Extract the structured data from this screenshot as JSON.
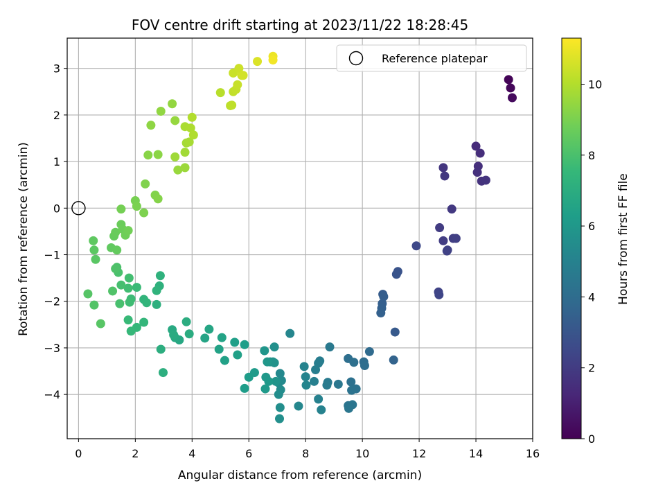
{
  "chart_data": {
    "type": "scatter",
    "title": "FOV centre drift starting at 2023/11/22 18:28:45",
    "xlabel": "Angular distance from reference (arcmin)",
    "ylabel": "Rotation from reference (arcmin)",
    "xlim": [
      -0.4,
      16.0
    ],
    "ylim": [
      -4.95,
      3.65
    ],
    "xticks": [
      0,
      2,
      4,
      6,
      8,
      10,
      12,
      14,
      16
    ],
    "yticks": [
      -4,
      -3,
      -2,
      -1,
      0,
      1,
      2,
      3
    ],
    "grid": true,
    "legend": {
      "position": "top-right",
      "entries": [
        {
          "label": "Reference platepar",
          "marker": "open-circle"
        }
      ]
    },
    "reference_point": {
      "x": 0,
      "y": 0
    },
    "colorbar": {
      "label": "Hours from first FF file",
      "range": [
        0,
        11.3
      ],
      "ticks": [
        0,
        2,
        4,
        6,
        8,
        10
      ],
      "colormap": "viridis"
    },
    "points": [
      {
        "x": 15.15,
        "y": 2.76,
        "c": 0.1
      },
      {
        "x": 15.22,
        "y": 2.58,
        "c": 0.2
      },
      {
        "x": 15.28,
        "y": 2.37,
        "c": 0.3
      },
      {
        "x": 14.0,
        "y": 1.33,
        "c": 1.4
      },
      {
        "x": 14.15,
        "y": 1.18,
        "c": 1.5
      },
      {
        "x": 14.08,
        "y": 0.9,
        "c": 1.55
      },
      {
        "x": 14.05,
        "y": 0.77,
        "c": 1.6
      },
      {
        "x": 14.2,
        "y": 0.58,
        "c": 1.65
      },
      {
        "x": 14.35,
        "y": 0.6,
        "c": 1.7
      },
      {
        "x": 12.85,
        "y": 0.87,
        "c": 1.8
      },
      {
        "x": 12.9,
        "y": 0.69,
        "c": 1.85
      },
      {
        "x": 13.15,
        "y": -0.02,
        "c": 1.9
      },
      {
        "x": 12.72,
        "y": -0.42,
        "c": 2.0
      },
      {
        "x": 12.85,
        "y": -0.7,
        "c": 2.05
      },
      {
        "x": 13.2,
        "y": -0.65,
        "c": 2.1
      },
      {
        "x": 13.3,
        "y": -0.65,
        "c": 2.15
      },
      {
        "x": 13.0,
        "y": -0.9,
        "c": 2.2
      },
      {
        "x": 12.98,
        "y": -0.92,
        "c": 2.25
      },
      {
        "x": 11.9,
        "y": -0.81,
        "c": 2.5
      },
      {
        "x": 12.68,
        "y": -1.8,
        "c": 2.3
      },
      {
        "x": 12.7,
        "y": -1.86,
        "c": 2.35
      },
      {
        "x": 11.25,
        "y": -1.36,
        "c": 2.9
      },
      {
        "x": 11.2,
        "y": -1.42,
        "c": 2.95
      },
      {
        "x": 10.72,
        "y": -1.85,
        "c": 3.3
      },
      {
        "x": 10.75,
        "y": -1.9,
        "c": 3.35
      },
      {
        "x": 10.7,
        "y": -2.05,
        "c": 3.4
      },
      {
        "x": 10.68,
        "y": -2.15,
        "c": 3.45
      },
      {
        "x": 10.65,
        "y": -2.25,
        "c": 3.5
      },
      {
        "x": 11.15,
        "y": -2.66,
        "c": 3.2
      },
      {
        "x": 11.1,
        "y": -3.26,
        "c": 3.6
      },
      {
        "x": 10.25,
        "y": -3.08,
        "c": 3.9
      },
      {
        "x": 10.05,
        "y": -3.3,
        "c": 4.0
      },
      {
        "x": 10.08,
        "y": -3.38,
        "c": 4.05
      },
      {
        "x": 9.5,
        "y": -3.23,
        "c": 4.1
      },
      {
        "x": 9.7,
        "y": -3.31,
        "c": 4.15
      },
      {
        "x": 9.6,
        "y": -3.73,
        "c": 4.2
      },
      {
        "x": 9.78,
        "y": -3.88,
        "c": 4.25
      },
      {
        "x": 9.62,
        "y": -3.91,
        "c": 4.3
      },
      {
        "x": 9.5,
        "y": -4.24,
        "c": 4.35
      },
      {
        "x": 9.65,
        "y": -4.22,
        "c": 4.4
      },
      {
        "x": 9.52,
        "y": -4.3,
        "c": 4.45
      },
      {
        "x": 9.15,
        "y": -3.78,
        "c": 4.5
      },
      {
        "x": 8.85,
        "y": -2.98,
        "c": 4.6
      },
      {
        "x": 8.78,
        "y": -3.74,
        "c": 4.65
      },
      {
        "x": 8.75,
        "y": -3.8,
        "c": 4.7
      },
      {
        "x": 8.5,
        "y": -3.28,
        "c": 4.75
      },
      {
        "x": 8.45,
        "y": -3.33,
        "c": 4.8
      },
      {
        "x": 8.35,
        "y": -3.47,
        "c": 4.85
      },
      {
        "x": 8.3,
        "y": -3.72,
        "c": 4.9
      },
      {
        "x": 8.45,
        "y": -4.1,
        "c": 4.95
      },
      {
        "x": 8.55,
        "y": -4.33,
        "c": 5.0
      },
      {
        "x": 7.95,
        "y": -3.4,
        "c": 5.05
      },
      {
        "x": 8.0,
        "y": -3.62,
        "c": 5.1
      },
      {
        "x": 8.02,
        "y": -3.8,
        "c": 5.15
      },
      {
        "x": 7.45,
        "y": -2.69,
        "c": 5.2
      },
      {
        "x": 7.75,
        "y": -4.25,
        "c": 5.25
      },
      {
        "x": 7.1,
        "y": -3.55,
        "c": 5.3
      },
      {
        "x": 7.15,
        "y": -3.7,
        "c": 5.35
      },
      {
        "x": 7.05,
        "y": -3.75,
        "c": 5.4
      },
      {
        "x": 7.12,
        "y": -3.9,
        "c": 5.45
      },
      {
        "x": 7.05,
        "y": -4.0,
        "c": 5.5
      },
      {
        "x": 7.1,
        "y": -4.28,
        "c": 5.55
      },
      {
        "x": 7.08,
        "y": -4.52,
        "c": 5.6
      },
      {
        "x": 6.9,
        "y": -2.98,
        "c": 5.65
      },
      {
        "x": 6.9,
        "y": -3.32,
        "c": 5.7
      },
      {
        "x": 6.75,
        "y": -3.3,
        "c": 5.75
      },
      {
        "x": 6.85,
        "y": -3.3,
        "c": 5.8
      },
      {
        "x": 6.95,
        "y": -3.72,
        "c": 5.85
      },
      {
        "x": 6.55,
        "y": -3.06,
        "c": 5.9
      },
      {
        "x": 6.65,
        "y": -3.3,
        "c": 5.95
      },
      {
        "x": 6.6,
        "y": -3.63,
        "c": 6.0
      },
      {
        "x": 6.7,
        "y": -3.72,
        "c": 6.05
      },
      {
        "x": 6.58,
        "y": -3.88,
        "c": 6.1
      },
      {
        "x": 6.2,
        "y": -3.53,
        "c": 6.15
      },
      {
        "x": 6.0,
        "y": -3.63,
        "c": 6.2
      },
      {
        "x": 5.85,
        "y": -3.87,
        "c": 6.25
      },
      {
        "x": 5.85,
        "y": -2.93,
        "c": 6.3
      },
      {
        "x": 5.5,
        "y": -2.88,
        "c": 6.35
      },
      {
        "x": 5.6,
        "y": -3.15,
        "c": 6.4
      },
      {
        "x": 5.15,
        "y": -3.27,
        "c": 6.45
      },
      {
        "x": 4.95,
        "y": -3.03,
        "c": 6.5
      },
      {
        "x": 5.05,
        "y": -2.78,
        "c": 6.55
      },
      {
        "x": 4.45,
        "y": -2.79,
        "c": 6.6
      },
      {
        "x": 4.6,
        "y": -2.6,
        "c": 6.65
      },
      {
        "x": 3.55,
        "y": -2.83,
        "c": 6.75
      },
      {
        "x": 3.4,
        "y": -2.78,
        "c": 6.8
      },
      {
        "x": 3.3,
        "y": -2.61,
        "c": 6.85
      },
      {
        "x": 3.35,
        "y": -2.72,
        "c": 6.9
      },
      {
        "x": 3.9,
        "y": -2.7,
        "c": 6.95
      },
      {
        "x": 3.8,
        "y": -2.44,
        "c": 7.0
      },
      {
        "x": 2.9,
        "y": -3.03,
        "c": 7.05
      },
      {
        "x": 2.98,
        "y": -3.53,
        "c": 7.1
      },
      {
        "x": 2.75,
        "y": -2.07,
        "c": 7.15
      },
      {
        "x": 2.85,
        "y": -1.67,
        "c": 7.2
      },
      {
        "x": 2.88,
        "y": -1.45,
        "c": 7.25
      },
      {
        "x": 2.75,
        "y": -1.77,
        "c": 7.3
      },
      {
        "x": 2.3,
        "y": -1.96,
        "c": 7.35
      },
      {
        "x": 2.4,
        "y": -2.03,
        "c": 7.4
      },
      {
        "x": 2.3,
        "y": -2.45,
        "c": 7.45
      },
      {
        "x": 2.05,
        "y": -2.56,
        "c": 7.5
      },
      {
        "x": 1.85,
        "y": -2.64,
        "c": 7.55
      },
      {
        "x": 1.75,
        "y": -2.4,
        "c": 7.6
      },
      {
        "x": 2.05,
        "y": -1.7,
        "c": 7.65
      },
      {
        "x": 1.85,
        "y": -1.95,
        "c": 7.7
      },
      {
        "x": 1.8,
        "y": -2.02,
        "c": 7.75
      },
      {
        "x": 1.75,
        "y": -1.72,
        "c": 7.8
      },
      {
        "x": 1.78,
        "y": -1.5,
        "c": 7.85
      },
      {
        "x": 1.5,
        "y": -1.65,
        "c": 7.9
      },
      {
        "x": 1.45,
        "y": -2.05,
        "c": 7.95
      },
      {
        "x": 1.4,
        "y": -1.38,
        "c": 8.0
      },
      {
        "x": 1.35,
        "y": -1.27,
        "c": 8.05
      },
      {
        "x": 1.3,
        "y": -1.3,
        "c": 8.1
      },
      {
        "x": 1.2,
        "y": -1.78,
        "c": 8.15
      },
      {
        "x": 0.55,
        "y": -2.08,
        "c": 8.2
      },
      {
        "x": 0.33,
        "y": -1.84,
        "c": 8.25
      },
      {
        "x": 0.78,
        "y": -2.48,
        "c": 8.3
      },
      {
        "x": 0.6,
        "y": -1.1,
        "c": 8.35
      },
      {
        "x": 0.55,
        "y": -0.9,
        "c": 8.4
      },
      {
        "x": 0.52,
        "y": -0.7,
        "c": 8.45
      },
      {
        "x": 1.15,
        "y": -0.85,
        "c": 8.5
      },
      {
        "x": 1.35,
        "y": -0.9,
        "c": 8.55
      },
      {
        "x": 1.25,
        "y": -0.6,
        "c": 8.6
      },
      {
        "x": 1.3,
        "y": -0.52,
        "c": 8.65
      },
      {
        "x": 1.5,
        "y": -0.35,
        "c": 8.7
      },
      {
        "x": 1.55,
        "y": -0.45,
        "c": 8.75
      },
      {
        "x": 1.65,
        "y": -0.58,
        "c": 8.8
      },
      {
        "x": 1.75,
        "y": -0.48,
        "c": 8.85
      },
      {
        "x": 1.5,
        "y": -0.02,
        "c": 8.9
      },
      {
        "x": 2.0,
        "y": 0.16,
        "c": 8.95
      },
      {
        "x": 2.05,
        "y": 0.04,
        "c": 9.0
      },
      {
        "x": 2.3,
        "y": -0.1,
        "c": 9.05
      },
      {
        "x": 2.35,
        "y": 0.52,
        "c": 9.1
      },
      {
        "x": 2.7,
        "y": 0.28,
        "c": 9.15
      },
      {
        "x": 2.8,
        "y": 0.2,
        "c": 9.2
      },
      {
        "x": 2.45,
        "y": 1.14,
        "c": 9.25
      },
      {
        "x": 2.8,
        "y": 1.15,
        "c": 9.3
      },
      {
        "x": 2.55,
        "y": 1.78,
        "c": 9.35
      },
      {
        "x": 2.9,
        "y": 2.08,
        "c": 9.4
      },
      {
        "x": 3.3,
        "y": 2.24,
        "c": 9.45
      },
      {
        "x": 3.4,
        "y": 1.88,
        "c": 9.5
      },
      {
        "x": 3.5,
        "y": 0.82,
        "c": 9.55
      },
      {
        "x": 3.75,
        "y": 0.87,
        "c": 9.6
      },
      {
        "x": 3.4,
        "y": 1.1,
        "c": 9.65
      },
      {
        "x": 3.75,
        "y": 1.2,
        "c": 9.7
      },
      {
        "x": 3.8,
        "y": 1.4,
        "c": 9.75
      },
      {
        "x": 3.9,
        "y": 1.42,
        "c": 9.8
      },
      {
        "x": 3.75,
        "y": 1.75,
        "c": 9.85
      },
      {
        "x": 3.95,
        "y": 1.72,
        "c": 9.9
      },
      {
        "x": 4.05,
        "y": 1.57,
        "c": 9.95
      },
      {
        "x": 4.0,
        "y": 1.95,
        "c": 10.0
      },
      {
        "x": 5.0,
        "y": 2.48,
        "c": 10.1
      },
      {
        "x": 5.35,
        "y": 2.2,
        "c": 10.15
      },
      {
        "x": 5.4,
        "y": 2.21,
        "c": 10.2
      },
      {
        "x": 5.45,
        "y": 2.5,
        "c": 10.25
      },
      {
        "x": 5.55,
        "y": 2.55,
        "c": 10.3
      },
      {
        "x": 5.6,
        "y": 2.65,
        "c": 10.35
      },
      {
        "x": 5.45,
        "y": 2.9,
        "c": 10.4
      },
      {
        "x": 5.65,
        "y": 3.0,
        "c": 10.45
      },
      {
        "x": 5.75,
        "y": 2.85,
        "c": 10.5
      },
      {
        "x": 5.8,
        "y": 2.85,
        "c": 10.55
      },
      {
        "x": 6.3,
        "y": 3.15,
        "c": 10.7
      },
      {
        "x": 6.85,
        "y": 3.26,
        "c": 11.0
      },
      {
        "x": 6.85,
        "y": 3.18,
        "c": 11.1
      }
    ]
  }
}
